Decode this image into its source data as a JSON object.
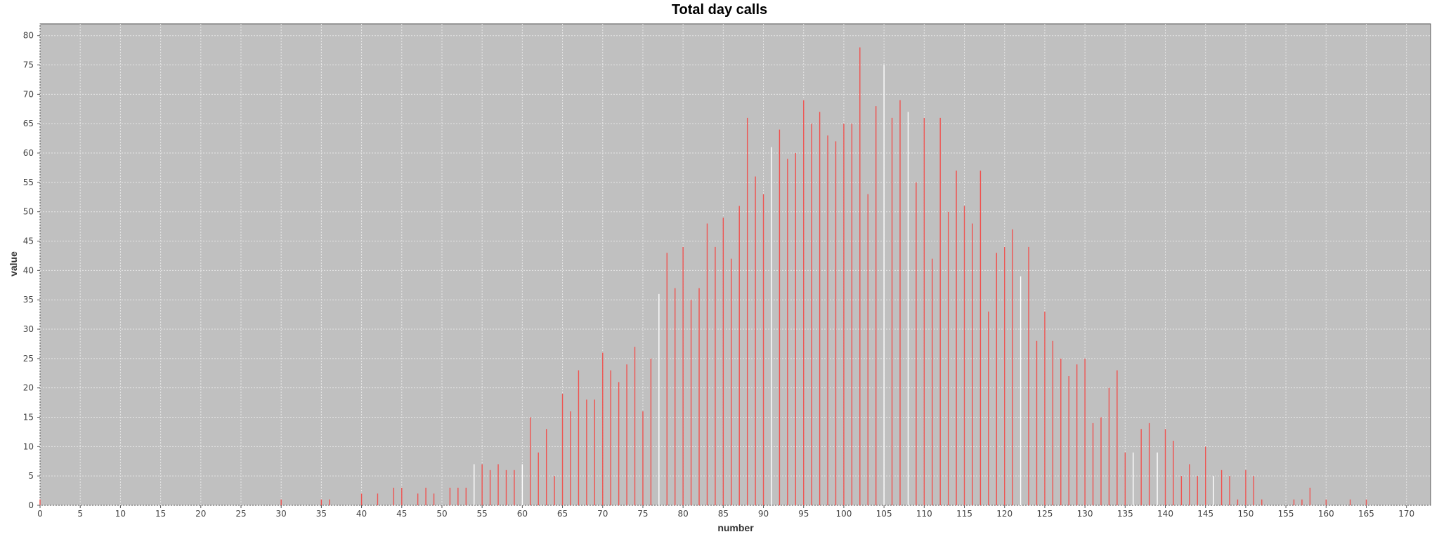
{
  "chart_data": {
    "type": "bar",
    "title": "Total day calls",
    "xlabel": "number",
    "ylabel": "value",
    "xlim": [
      0,
      173
    ],
    "ylim": [
      0,
      82
    ],
    "x_ticks": [
      0,
      5,
      10,
      15,
      20,
      25,
      30,
      35,
      40,
      45,
      50,
      55,
      60,
      65,
      70,
      75,
      80,
      85,
      90,
      95,
      100,
      105,
      110,
      115,
      120,
      125,
      130,
      135,
      140,
      145,
      150,
      155,
      160,
      165,
      170
    ],
    "y_ticks": [
      0,
      5,
      10,
      15,
      20,
      25,
      30,
      35,
      40,
      45,
      50,
      55,
      60,
      65,
      70,
      75,
      80
    ],
    "grid": true,
    "plot_background": "#c0c0c0",
    "bar_color": "#ef5350",
    "highlight_color": "#ffffff",
    "highlighted_x": [
      54,
      60,
      77,
      91,
      105,
      108,
      122,
      136,
      139,
      146
    ],
    "points": [
      [
        0,
        1
      ],
      [
        30,
        1
      ],
      [
        35,
        1
      ],
      [
        36,
        1
      ],
      [
        40,
        2
      ],
      [
        42,
        2
      ],
      [
        44,
        3
      ],
      [
        45,
        3
      ],
      [
        47,
        2
      ],
      [
        48,
        3
      ],
      [
        49,
        2
      ],
      [
        51,
        3
      ],
      [
        52,
        3
      ],
      [
        53,
        3
      ],
      [
        54,
        7
      ],
      [
        55,
        7
      ],
      [
        56,
        6
      ],
      [
        57,
        7
      ],
      [
        58,
        6
      ],
      [
        59,
        6
      ],
      [
        60,
        7
      ],
      [
        61,
        15
      ],
      [
        62,
        9
      ],
      [
        63,
        13
      ],
      [
        64,
        5
      ],
      [
        65,
        19
      ],
      [
        66,
        16
      ],
      [
        67,
        23
      ],
      [
        68,
        18
      ],
      [
        69,
        18
      ],
      [
        70,
        26
      ],
      [
        71,
        23
      ],
      [
        72,
        21
      ],
      [
        73,
        24
      ],
      [
        74,
        27
      ],
      [
        75,
        16
      ],
      [
        76,
        25
      ],
      [
        77,
        36
      ],
      [
        78,
        43
      ],
      [
        79,
        37
      ],
      [
        80,
        44
      ],
      [
        81,
        35
      ],
      [
        82,
        37
      ],
      [
        83,
        48
      ],
      [
        84,
        44
      ],
      [
        85,
        49
      ],
      [
        86,
        42
      ],
      [
        87,
        51
      ],
      [
        88,
        66
      ],
      [
        89,
        56
      ],
      [
        90,
        53
      ],
      [
        91,
        61
      ],
      [
        92,
        64
      ],
      [
        93,
        59
      ],
      [
        94,
        60
      ],
      [
        95,
        69
      ],
      [
        96,
        65
      ],
      [
        97,
        67
      ],
      [
        98,
        63
      ],
      [
        99,
        62
      ],
      [
        100,
        65
      ],
      [
        101,
        65
      ],
      [
        102,
        78
      ],
      [
        103,
        53
      ],
      [
        104,
        68
      ],
      [
        105,
        75
      ],
      [
        106,
        66
      ],
      [
        107,
        69
      ],
      [
        108,
        67
      ],
      [
        109,
        55
      ],
      [
        110,
        66
      ],
      [
        111,
        42
      ],
      [
        112,
        66
      ],
      [
        113,
        50
      ],
      [
        114,
        57
      ],
      [
        115,
        51
      ],
      [
        116,
        48
      ],
      [
        117,
        57
      ],
      [
        118,
        33
      ],
      [
        119,
        43
      ],
      [
        120,
        44
      ],
      [
        121,
        47
      ],
      [
        122,
        39
      ],
      [
        123,
        44
      ],
      [
        124,
        28
      ],
      [
        125,
        33
      ],
      [
        126,
        28
      ],
      [
        127,
        25
      ],
      [
        128,
        22
      ],
      [
        129,
        24
      ],
      [
        130,
        25
      ],
      [
        131,
        14
      ],
      [
        132,
        15
      ],
      [
        133,
        20
      ],
      [
        134,
        23
      ],
      [
        135,
        9
      ],
      [
        136,
        9
      ],
      [
        137,
        13
      ],
      [
        138,
        14
      ],
      [
        139,
        9
      ],
      [
        140,
        13
      ],
      [
        141,
        11
      ],
      [
        142,
        5
      ],
      [
        143,
        7
      ],
      [
        144,
        5
      ],
      [
        145,
        10
      ],
      [
        146,
        5
      ],
      [
        147,
        6
      ],
      [
        148,
        5
      ],
      [
        149,
        1
      ],
      [
        150,
        6
      ],
      [
        151,
        5
      ],
      [
        152,
        1
      ],
      [
        156,
        1
      ],
      [
        157,
        1
      ],
      [
        158,
        3
      ],
      [
        160,
        1
      ],
      [
        163,
        1
      ],
      [
        165,
        1
      ]
    ]
  }
}
